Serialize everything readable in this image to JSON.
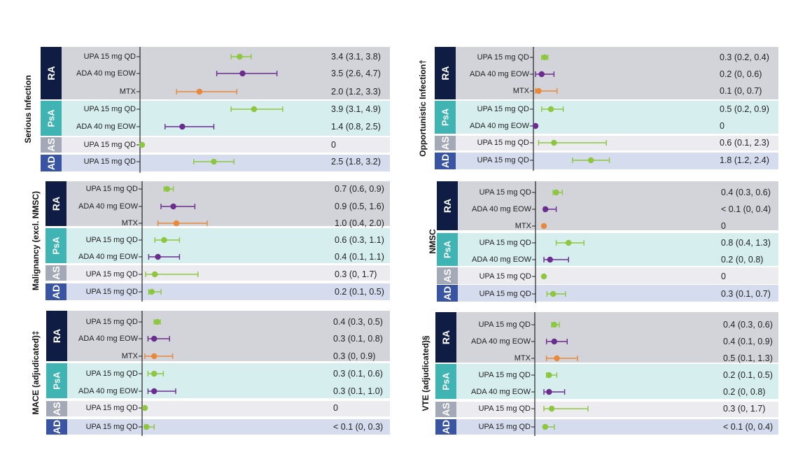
{
  "colors": {
    "UPA": "#8dc63f",
    "ADA": "#6a2c8e",
    "MTX": "#e8883a",
    "band_RA": "#d2d4d9",
    "band_PsA": "#d7eeee",
    "band_AS": "#ebebf0",
    "band_AD": "#d4dcee",
    "label_RA": "#0f1d45",
    "label_PsA": "#3fb4b2",
    "label_AS": "#a4a9b8",
    "label_AD": "#3a54a4"
  },
  "chart_data": [
    {
      "type": "forest",
      "title": "",
      "ylabel": "Serious Infection",
      "groups": [
        {
          "name": "RA",
          "rows": [
            {
              "treatment": "UPA 15 mg QD",
              "value": 3.4,
              "lo": 3.1,
              "hi": 3.8,
              "ci_text": "3.4 (3.1, 3.8)"
            },
            {
              "treatment": "ADA 40 mg EOW",
              "value": 3.5,
              "lo": 2.6,
              "hi": 4.7,
              "ci_text": "3.5 (2.6, 4.7)"
            },
            {
              "treatment": "MTX",
              "value": 2.0,
              "lo": 1.2,
              "hi": 3.3,
              "ci_text": "2.0 (1.2, 3.3)"
            }
          ]
        },
        {
          "name": "PsA",
          "rows": [
            {
              "treatment": "UPA 15 mg QD",
              "value": 3.9,
              "lo": 3.1,
              "hi": 4.9,
              "ci_text": "3.9 (3.1, 4.9)"
            },
            {
              "treatment": "ADA 40 mg EOW",
              "value": 1.4,
              "lo": 0.8,
              "hi": 2.5,
              "ci_text": "1.4 (0.8, 2.5)"
            }
          ]
        },
        {
          "name": "AS",
          "rows": [
            {
              "treatment": "UPA 15 mg QD",
              "value": 0,
              "lo": 0,
              "hi": 0,
              "ci_text": "0"
            }
          ]
        },
        {
          "name": "AD",
          "rows": [
            {
              "treatment": "UPA 15 mg QD",
              "value": 2.5,
              "lo": 1.8,
              "hi": 3.2,
              "ci_text": "2.5 (1.8, 3.2)"
            }
          ]
        }
      ]
    },
    {
      "type": "forest",
      "title": "",
      "ylabel": "Opportunistic Infection†",
      "groups": [
        {
          "name": "RA",
          "rows": [
            {
              "treatment": "UPA 15 mg QD",
              "value": 0.3,
              "lo": 0.2,
              "hi": 0.4,
              "ci_text": "0.3 (0.2, 0.4)"
            },
            {
              "treatment": "ADA 40 mg EOW",
              "value": 0.2,
              "lo": 0,
              "hi": 0.6,
              "ci_text": "0.2 (0, 0.6)"
            },
            {
              "treatment": "MTX",
              "value": 0.1,
              "lo": 0,
              "hi": 0.7,
              "ci_text": "0.1 (0, 0.7)"
            }
          ]
        },
        {
          "name": "PsA",
          "rows": [
            {
              "treatment": "UPA 15 mg QD",
              "value": 0.5,
              "lo": 0.2,
              "hi": 0.9,
              "ci_text": "0.5 (0.2, 0.9)"
            },
            {
              "treatment": "ADA 40 mg EOW",
              "value": 0,
              "lo": 0,
              "hi": 0,
              "ci_text": "0"
            }
          ]
        },
        {
          "name": "AS",
          "rows": [
            {
              "treatment": "UPA 15 mg QD",
              "value": 0.6,
              "lo": 0.1,
              "hi": 2.3,
              "ci_text": "0.6 (0.1, 2.3)"
            }
          ]
        },
        {
          "name": "AD",
          "rows": [
            {
              "treatment": "UPA 15 mg QD",
              "value": 1.8,
              "lo": 1.2,
              "hi": 2.4,
              "ci_text": "1.8 (1.2, 2.4)"
            }
          ]
        }
      ]
    },
    {
      "type": "forest",
      "title": "",
      "ylabel": "Malignancy (excl. NMSC)",
      "groups": [
        {
          "name": "RA",
          "rows": [
            {
              "treatment": "UPA 15 mg QD",
              "value": 0.7,
              "lo": 0.6,
              "hi": 0.9,
              "ci_text": "0.7 (0.6, 0.9)"
            },
            {
              "treatment": "ADA 40 mg EOW",
              "value": 0.9,
              "lo": 0.5,
              "hi": 1.6,
              "ci_text": "0.9 (0.5, 1.6)"
            },
            {
              "treatment": "MTX",
              "value": 1.0,
              "lo": 0.4,
              "hi": 2.0,
              "ci_text": "1.0 (0.4, 2.0)"
            }
          ]
        },
        {
          "name": "PsA",
          "rows": [
            {
              "treatment": "UPA 15 mg QD",
              "value": 0.6,
              "lo": 0.3,
              "hi": 1.1,
              "ci_text": "0.6 (0.3, 1.1)"
            },
            {
              "treatment": "ADA 40 mg EOW",
              "value": 0.4,
              "lo": 0.1,
              "hi": 1.1,
              "ci_text": "0.4 (0.1, 1.1)"
            }
          ]
        },
        {
          "name": "AS",
          "rows": [
            {
              "treatment": "UPA 15 mg QD",
              "value": 0.3,
              "lo": 0,
              "hi": 1.7,
              "ci_text": "0.3 (0, 1.7)"
            }
          ]
        },
        {
          "name": "AD",
          "rows": [
            {
              "treatment": "UPA 15 mg QD",
              "value": 0.2,
              "lo": 0.1,
              "hi": 0.5,
              "ci_text": "0.2 (0.1, 0.5)"
            }
          ]
        }
      ]
    },
    {
      "type": "forest",
      "title": "",
      "ylabel": "NMSC",
      "groups": [
        {
          "name": "RA",
          "rows": [
            {
              "treatment": "UPA 15 mg QD",
              "value": 0.4,
              "lo": 0.3,
              "hi": 0.6,
              "ci_text": "0.4 (0.3, 0.6)"
            },
            {
              "treatment": "ADA 40 mg EOW",
              "value": 0.05,
              "lo": 0,
              "hi": 0.4,
              "ci_text": "< 0.1 (0, 0.4)"
            },
            {
              "treatment": "MTX",
              "value": 0,
              "lo": 0,
              "hi": 0,
              "ci_text": "0"
            }
          ]
        },
        {
          "name": "PsA",
          "rows": [
            {
              "treatment": "UPA 15 mg QD",
              "value": 0.8,
              "lo": 0.4,
              "hi": 1.3,
              "ci_text": "0.8 (0.4, 1.3)"
            },
            {
              "treatment": "ADA 40 mg EOW",
              "value": 0.2,
              "lo": 0,
              "hi": 0.8,
              "ci_text": "0.2 (0, 0.8)"
            }
          ]
        },
        {
          "name": "AS",
          "rows": [
            {
              "treatment": "UPA 15 mg QD",
              "value": 0,
              "lo": 0,
              "hi": 0,
              "ci_text": "0"
            }
          ]
        },
        {
          "name": "AD",
          "rows": [
            {
              "treatment": "UPA 15 mg QD",
              "value": 0.3,
              "lo": 0.1,
              "hi": 0.7,
              "ci_text": "0.3 (0.1, 0.7)"
            }
          ]
        }
      ]
    },
    {
      "type": "forest",
      "title": "",
      "ylabel": "MACE (adjudicated)‡",
      "groups": [
        {
          "name": "RA",
          "rows": [
            {
              "treatment": "UPA 15 mg QD",
              "value": 0.4,
              "lo": 0.3,
              "hi": 0.5,
              "ci_text": "0.4 (0.3, 0.5)"
            },
            {
              "treatment": "ADA 40 mg EOW",
              "value": 0.3,
              "lo": 0.1,
              "hi": 0.8,
              "ci_text": "0.3 (0.1, 0.8)"
            },
            {
              "treatment": "MTX",
              "value": 0.3,
              "lo": 0,
              "hi": 0.9,
              "ci_text": "0.3 (0, 0.9)"
            }
          ]
        },
        {
          "name": "PsA",
          "rows": [
            {
              "treatment": "UPA 15 mg QD",
              "value": 0.3,
              "lo": 0.1,
              "hi": 0.6,
              "ci_text": "0.3 (0.1, 0.6)"
            },
            {
              "treatment": "ADA 40 mg EOW",
              "value": 0.3,
              "lo": 0.1,
              "hi": 1.0,
              "ci_text": "0.3 (0.1, 1.0)"
            }
          ]
        },
        {
          "name": "AS",
          "rows": [
            {
              "treatment": "UPA 15 mg QD",
              "value": 0,
              "lo": 0,
              "hi": 0,
              "ci_text": "0"
            }
          ]
        },
        {
          "name": "AD",
          "rows": [
            {
              "treatment": "UPA 15 mg QD",
              "value": 0.05,
              "lo": 0,
              "hi": 0.3,
              "ci_text": "< 0.1 (0, 0.3)"
            }
          ]
        }
      ]
    },
    {
      "type": "forest",
      "title": "",
      "ylabel": "VTE (adjudicated)§",
      "groups": [
        {
          "name": "RA",
          "rows": [
            {
              "treatment": "UPA 15 mg QD",
              "value": 0.4,
              "lo": 0.3,
              "hi": 0.6,
              "ci_text": "0.4 (0.3, 0.6)"
            },
            {
              "treatment": "ADA 40 mg EOW",
              "value": 0.4,
              "lo": 0.1,
              "hi": 0.9,
              "ci_text": "0.4 (0.1, 0.9)"
            },
            {
              "treatment": "MTX",
              "value": 0.5,
              "lo": 0.1,
              "hi": 1.3,
              "ci_text": "0.5 (0.1, 1.3)"
            }
          ]
        },
        {
          "name": "PsA",
          "rows": [
            {
              "treatment": "UPA 15 mg QD",
              "value": 0.2,
              "lo": 0.1,
              "hi": 0.5,
              "ci_text": "0.2 (0.1, 0.5)"
            },
            {
              "treatment": "ADA 40 mg EOW",
              "value": 0.2,
              "lo": 0,
              "hi": 0.8,
              "ci_text": "0.2 (0, 0.8)"
            }
          ]
        },
        {
          "name": "AS",
          "rows": [
            {
              "treatment": "UPA 15 mg QD",
              "value": 0.3,
              "lo": 0,
              "hi": 1.7,
              "ci_text": "0.3 (0, 1.7)"
            }
          ]
        },
        {
          "name": "AD",
          "rows": [
            {
              "treatment": "UPA 15 mg QD",
              "value": 0.05,
              "lo": 0,
              "hi": 0.4,
              "ci_text": "< 0.1 (0, 0.4)"
            }
          ]
        }
      ]
    }
  ]
}
